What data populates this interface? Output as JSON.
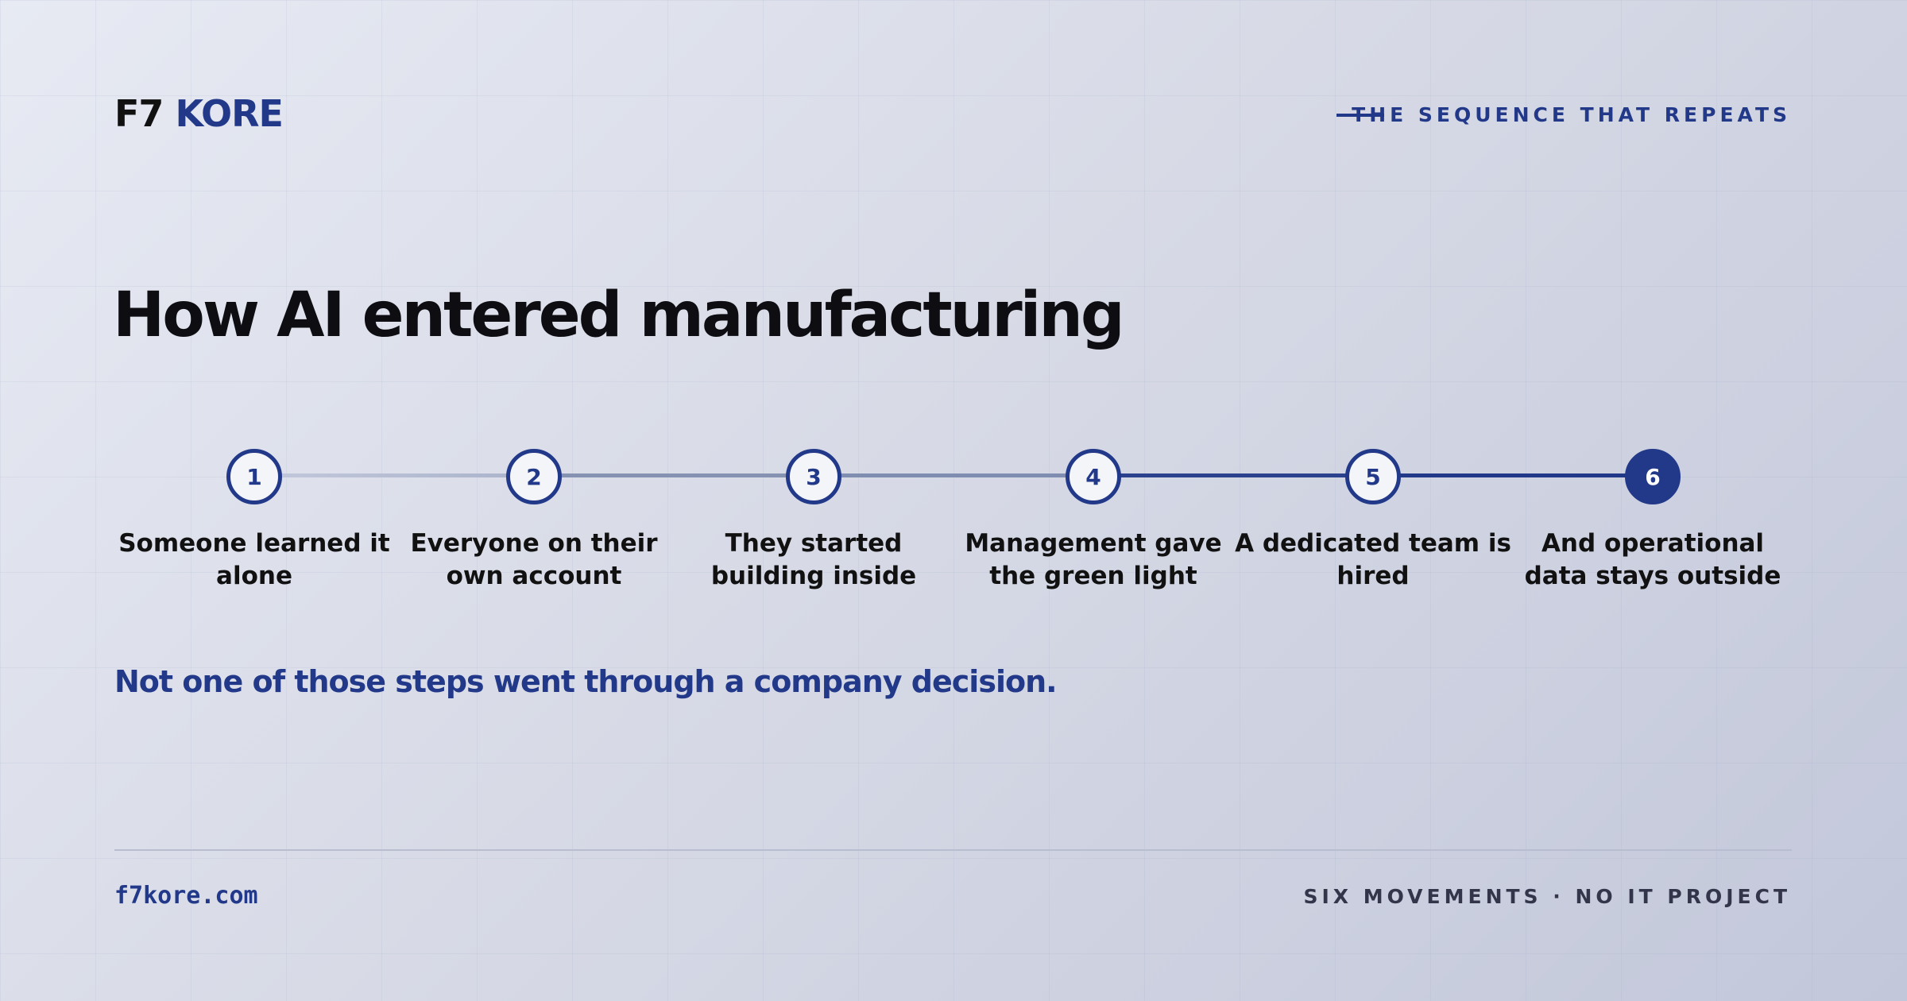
{
  "header": {
    "logo_primary": "F7",
    "logo_accent": "KORE",
    "tagline": "THE SEQUENCE THAT REPEATS"
  },
  "title": "How AI entered manufacturing",
  "steps": [
    {
      "number": "1",
      "lines": [
        "Someone learned it",
        "alone"
      ]
    },
    {
      "number": "2",
      "lines": [
        "Everyone on their",
        "own account"
      ]
    },
    {
      "number": "3",
      "lines": [
        "They started",
        "building inside"
      ]
    },
    {
      "number": "4",
      "lines": [
        "Management gave",
        "the green light"
      ]
    },
    {
      "number": "5",
      "lines": [
        "A dedicated team is",
        "hired"
      ]
    },
    {
      "number": "6",
      "lines": [
        "And operational",
        "data stays outside"
      ]
    }
  ],
  "note": "Not one of those steps went through a company decision.",
  "footer": {
    "url": "f7kore.com",
    "tagline": "SIX MOVEMENTS · NO IT PROJECT"
  }
}
